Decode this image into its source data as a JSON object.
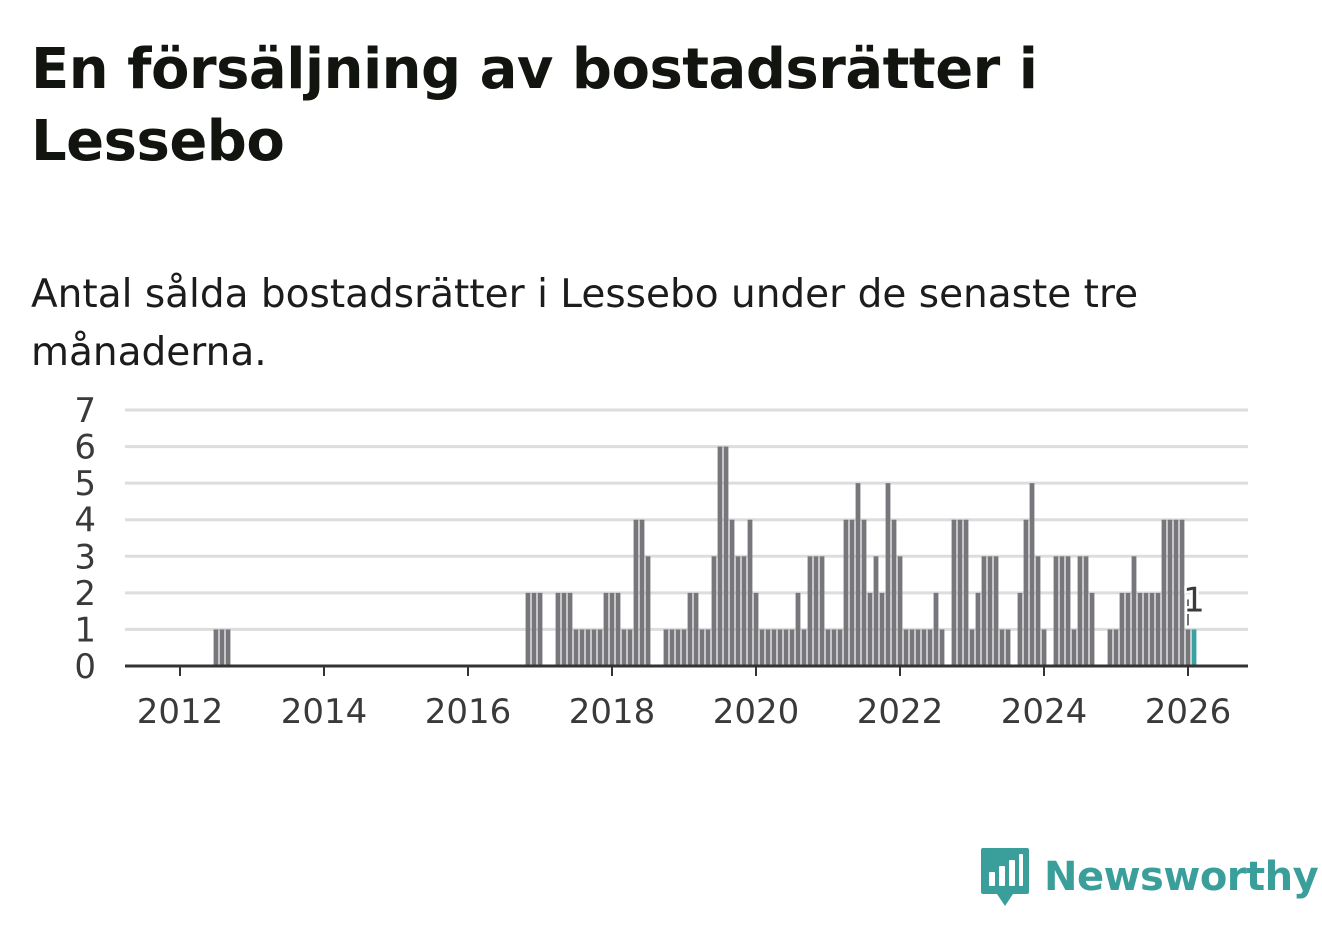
{
  "title": "En försäljning av bostadsrätter i Lessebo",
  "subtitle": "Antal sålda bostadsrätter i Lessebo under de senaste tre månaderna.",
  "brand": "Newsworthy",
  "colors": {
    "bar": "#77767a",
    "highlight": "#3aa39f",
    "grid": "#dddddd",
    "axis": "#333333",
    "brand": "#3a9e9a"
  },
  "chart_data": {
    "type": "bar",
    "title": "En försäljning av bostadsrätter i Lessebo",
    "xlabel": "",
    "ylabel": "",
    "ylim": [
      0,
      7
    ],
    "yticks": [
      0,
      1,
      2,
      3,
      4,
      5,
      6,
      7
    ],
    "xticks": [
      2012,
      2014,
      2016,
      2018,
      2020,
      2022,
      2024,
      2026
    ],
    "start": "2011-04",
    "end": "2026-02",
    "frequency": "monthly",
    "series": [
      {
        "name": "Antal sålda bostadsrätter",
        "points": [
          {
            "t": "2012-07",
            "v": 1
          },
          {
            "t": "2012-08",
            "v": 1
          },
          {
            "t": "2012-09",
            "v": 1
          },
          {
            "t": "2016-11",
            "v": 2
          },
          {
            "t": "2016-12",
            "v": 2
          },
          {
            "t": "2017-01",
            "v": 2
          },
          {
            "t": "2017-04",
            "v": 2
          },
          {
            "t": "2017-05",
            "v": 2
          },
          {
            "t": "2017-06",
            "v": 2
          },
          {
            "t": "2017-07",
            "v": 1
          },
          {
            "t": "2017-08",
            "v": 1
          },
          {
            "t": "2017-09",
            "v": 1
          },
          {
            "t": "2017-10",
            "v": 1
          },
          {
            "t": "2017-11",
            "v": 1
          },
          {
            "t": "2017-12",
            "v": 2
          },
          {
            "t": "2018-01",
            "v": 2
          },
          {
            "t": "2018-02",
            "v": 2
          },
          {
            "t": "2018-03",
            "v": 1
          },
          {
            "t": "2018-04",
            "v": 1
          },
          {
            "t": "2018-05",
            "v": 4
          },
          {
            "t": "2018-06",
            "v": 4
          },
          {
            "t": "2018-07",
            "v": 3
          },
          {
            "t": "2018-10",
            "v": 1
          },
          {
            "t": "2018-11",
            "v": 1
          },
          {
            "t": "2018-12",
            "v": 1
          },
          {
            "t": "2019-01",
            "v": 1
          },
          {
            "t": "2019-02",
            "v": 2
          },
          {
            "t": "2019-03",
            "v": 2
          },
          {
            "t": "2019-04",
            "v": 1
          },
          {
            "t": "2019-05",
            "v": 1
          },
          {
            "t": "2019-06",
            "v": 3
          },
          {
            "t": "2019-07",
            "v": 6
          },
          {
            "t": "2019-08",
            "v": 6
          },
          {
            "t": "2019-09",
            "v": 4
          },
          {
            "t": "2019-10",
            "v": 3
          },
          {
            "t": "2019-11",
            "v": 3
          },
          {
            "t": "2019-12",
            "v": 4
          },
          {
            "t": "2020-01",
            "v": 2
          },
          {
            "t": "2020-02",
            "v": 1
          },
          {
            "t": "2020-03",
            "v": 1
          },
          {
            "t": "2020-04",
            "v": 1
          },
          {
            "t": "2020-05",
            "v": 1
          },
          {
            "t": "2020-06",
            "v": 1
          },
          {
            "t": "2020-07",
            "v": 1
          },
          {
            "t": "2020-08",
            "v": 2
          },
          {
            "t": "2020-09",
            "v": 1
          },
          {
            "t": "2020-10",
            "v": 3
          },
          {
            "t": "2020-11",
            "v": 3
          },
          {
            "t": "2020-12",
            "v": 3
          },
          {
            "t": "2021-01",
            "v": 1
          },
          {
            "t": "2021-02",
            "v": 1
          },
          {
            "t": "2021-03",
            "v": 1
          },
          {
            "t": "2021-04",
            "v": 4
          },
          {
            "t": "2021-05",
            "v": 4
          },
          {
            "t": "2021-06",
            "v": 5
          },
          {
            "t": "2021-07",
            "v": 4
          },
          {
            "t": "2021-08",
            "v": 2
          },
          {
            "t": "2021-09",
            "v": 3
          },
          {
            "t": "2021-10",
            "v": 2
          },
          {
            "t": "2021-11",
            "v": 5
          },
          {
            "t": "2021-12",
            "v": 4
          },
          {
            "t": "2022-01",
            "v": 3
          },
          {
            "t": "2022-02",
            "v": 1
          },
          {
            "t": "2022-03",
            "v": 1
          },
          {
            "t": "2022-04",
            "v": 1
          },
          {
            "t": "2022-05",
            "v": 1
          },
          {
            "t": "2022-06",
            "v": 1
          },
          {
            "t": "2022-07",
            "v": 2
          },
          {
            "t": "2022-08",
            "v": 1
          },
          {
            "t": "2022-10",
            "v": 4
          },
          {
            "t": "2022-11",
            "v": 4
          },
          {
            "t": "2022-12",
            "v": 4
          },
          {
            "t": "2023-01",
            "v": 1
          },
          {
            "t": "2023-02",
            "v": 2
          },
          {
            "t": "2023-03",
            "v": 3
          },
          {
            "t": "2023-04",
            "v": 3
          },
          {
            "t": "2023-05",
            "v": 3
          },
          {
            "t": "2023-06",
            "v": 1
          },
          {
            "t": "2023-07",
            "v": 1
          },
          {
            "t": "2023-09",
            "v": 2
          },
          {
            "t": "2023-10",
            "v": 4
          },
          {
            "t": "2023-11",
            "v": 5
          },
          {
            "t": "2023-12",
            "v": 3
          },
          {
            "t": "2024-01",
            "v": 1
          },
          {
            "t": "2024-03",
            "v": 3
          },
          {
            "t": "2024-04",
            "v": 3
          },
          {
            "t": "2024-05",
            "v": 3
          },
          {
            "t": "2024-06",
            "v": 1
          },
          {
            "t": "2024-07",
            "v": 3
          },
          {
            "t": "2024-08",
            "v": 3
          },
          {
            "t": "2024-09",
            "v": 2
          },
          {
            "t": "2024-12",
            "v": 1
          },
          {
            "t": "2025-01",
            "v": 1
          },
          {
            "t": "2025-02",
            "v": 2
          },
          {
            "t": "2025-03",
            "v": 2
          },
          {
            "t": "2025-04",
            "v": 3
          },
          {
            "t": "2025-05",
            "v": 2
          },
          {
            "t": "2025-06",
            "v": 2
          },
          {
            "t": "2025-07",
            "v": 2
          },
          {
            "t": "2025-08",
            "v": 2
          },
          {
            "t": "2025-09",
            "v": 4
          },
          {
            "t": "2025-10",
            "v": 4
          },
          {
            "t": "2025-11",
            "v": 4
          },
          {
            "t": "2025-12",
            "v": 4
          },
          {
            "t": "2026-01",
            "v": 1
          },
          {
            "t": "2026-02",
            "v": 1
          }
        ]
      }
    ],
    "highlight": {
      "t": "2026-02",
      "v": 1,
      "label": "1"
    }
  }
}
